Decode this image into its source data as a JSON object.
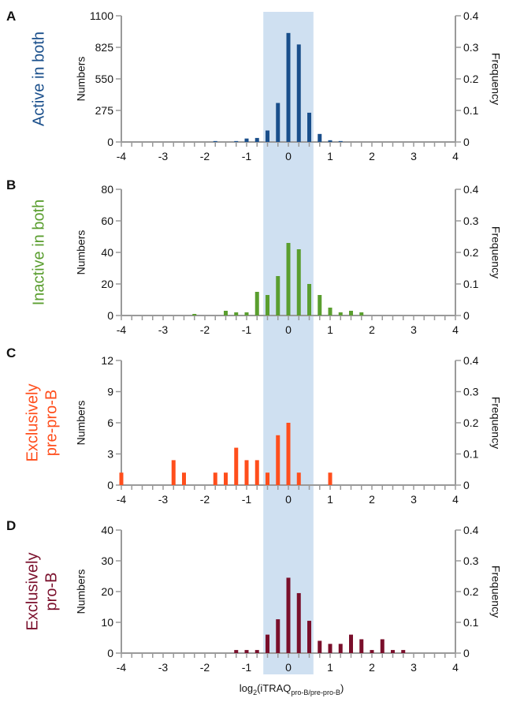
{
  "figure": {
    "shade_range": [
      -0.6,
      0.6
    ],
    "shade_color": "#cfe0f1",
    "axis_color": "#9a9a9a",
    "x_axis_label_main": "log",
    "x_axis_label_base": "2",
    "x_axis_label_open": "(iTRAQ",
    "x_axis_label_sub": "pro-B/pre-pro-B",
    "x_axis_label_close": ")"
  },
  "chart_data": [
    {
      "type": "bar",
      "panel_letter": "A",
      "side_title": [
        "Active in both"
      ],
      "color": "#1a4f8b",
      "ylabel": "Numbers",
      "y2label": "Frequency",
      "xlim": [
        -4,
        4
      ],
      "ylim": [
        0,
        1100
      ],
      "y_ticks": [
        0,
        275,
        550,
        825,
        1100
      ],
      "y2_ticks": [
        "0",
        "0.1",
        "0.2",
        "0.3",
        "0.4"
      ],
      "x_ticks": [
        -4,
        -3,
        -2,
        -1,
        0,
        1,
        2,
        3,
        4
      ],
      "x": [
        -1.75,
        -1.25,
        -1.0,
        -0.75,
        -0.5,
        -0.25,
        0.0,
        0.25,
        0.5,
        0.75,
        1.0,
        1.25
      ],
      "values": [
        8,
        8,
        30,
        35,
        100,
        340,
        950,
        850,
        255,
        70,
        15,
        8
      ]
    },
    {
      "type": "bar",
      "panel_letter": "B",
      "side_title": [
        "Inactive in both"
      ],
      "color": "#5a9e2f",
      "ylabel": "Numbers",
      "y2label": "Frequency",
      "xlim": [
        -4,
        4
      ],
      "ylim": [
        0,
        80
      ],
      "y_ticks": [
        0,
        20,
        40,
        60,
        80
      ],
      "y2_ticks": [
        "0",
        "0.1",
        "0.2",
        "0.3",
        "0.4"
      ],
      "x_ticks": [
        -4,
        -3,
        -2,
        -1,
        0,
        1,
        2,
        3,
        4
      ],
      "x": [
        -2.25,
        -1.5,
        -1.25,
        -1.0,
        -0.75,
        -0.5,
        -0.25,
        0.0,
        0.25,
        0.5,
        0.75,
        1.0,
        1.25,
        1.5,
        1.75
      ],
      "values": [
        1,
        3,
        2,
        2,
        15,
        13,
        25,
        46,
        42,
        20,
        13,
        5,
        2,
        3,
        2
      ]
    },
    {
      "type": "bar",
      "panel_letter": "C",
      "side_title": [
        "Exclusively",
        "pre-pro-B"
      ],
      "color": "#ff4e1c",
      "ylabel": "Numbers",
      "y2label": "Frequency",
      "xlim": [
        -4,
        4
      ],
      "ylim": [
        0,
        12
      ],
      "y_ticks": [
        0,
        3,
        6,
        9,
        12
      ],
      "y2_ticks": [
        "0",
        "0.1",
        "0.2",
        "0.3",
        "0.4"
      ],
      "x_ticks": [
        -4,
        -3,
        -2,
        -1,
        0,
        1,
        2,
        3,
        4
      ],
      "x": [
        -4.0,
        -2.75,
        -2.5,
        -1.75,
        -1.5,
        -1.25,
        -1.0,
        -0.75,
        -0.5,
        -0.25,
        0.0,
        0.25,
        1.0
      ],
      "values": [
        1.2,
        2.4,
        1.2,
        1.2,
        1.2,
        3.6,
        2.4,
        2.4,
        1.2,
        4.8,
        6,
        1.2,
        1.2
      ]
    },
    {
      "type": "bar",
      "panel_letter": "D",
      "side_title": [
        "Exclusively",
        "pro-B"
      ],
      "color": "#7a0f2b",
      "ylabel": "Numbers",
      "y2label": "Frequency",
      "xlim": [
        -4,
        4
      ],
      "ylim": [
        0,
        40
      ],
      "y_ticks": [
        0,
        10,
        20,
        30,
        40
      ],
      "y2_ticks": [
        "0",
        "0.1",
        "0.2",
        "0.3",
        "0.4"
      ],
      "x_ticks": [
        -4,
        -3,
        -2,
        -1,
        0,
        1,
        2,
        3,
        4
      ],
      "x": [
        -1.25,
        -1.0,
        -0.75,
        -0.5,
        -0.25,
        0.0,
        0.25,
        0.5,
        0.75,
        1.0,
        1.25,
        1.5,
        1.75,
        2.0,
        2.25,
        2.5,
        2.75
      ],
      "values": [
        1,
        1,
        1,
        6,
        11,
        24.5,
        19.5,
        10.5,
        4,
        3,
        3,
        6,
        4.5,
        1,
        4.5,
        1,
        1
      ]
    }
  ]
}
